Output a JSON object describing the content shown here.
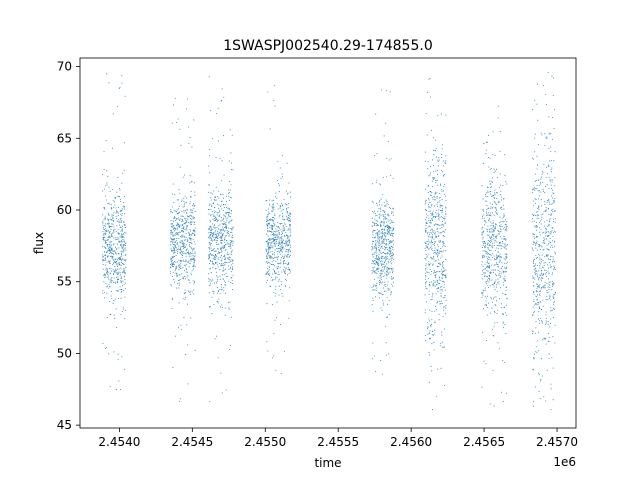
{
  "chart_data": {
    "type": "scatter",
    "title": "1SWASPJ002540.29-174855.0",
    "xlabel": "time",
    "ylabel": "flux",
    "x_offset_label": "1e6",
    "xlim": [
      2453730,
      2457130
    ],
    "ylim": [
      44.8,
      70.6
    ],
    "x_ticks": [
      2454000,
      2454500,
      2455000,
      2455500,
      2456000,
      2456500,
      2457000
    ],
    "x_tick_labels": [
      "2.4540",
      "2.4545",
      "2.4550",
      "2.4555",
      "2.4560",
      "2.4565",
      "2.4570"
    ],
    "y_ticks": [
      45,
      50,
      55,
      60,
      65,
      70
    ],
    "y_tick_labels": [
      "45",
      "50",
      "55",
      "60",
      "65",
      "70"
    ],
    "grid": false,
    "marker_color": "#1f77b4",
    "clusters": [
      {
        "x_start": 2453885,
        "x_end": 2454045,
        "center": 57.3,
        "core_spread": 1.9,
        "outlier_min": 47.2,
        "outlier_max": 69.6
      },
      {
        "x_start": 2454350,
        "x_end": 2454520,
        "center": 57.6,
        "core_spread": 1.8,
        "outlier_min": 46.0,
        "outlier_max": 68.6
      },
      {
        "x_start": 2454610,
        "x_end": 2454780,
        "center": 57.8,
        "core_spread": 2.1,
        "outlier_min": 46.0,
        "outlier_max": 69.3
      },
      {
        "x_start": 2455005,
        "x_end": 2455175,
        "center": 57.6,
        "core_spread": 1.7,
        "outlier_min": 48.2,
        "outlier_max": 68.9
      },
      {
        "x_start": 2455730,
        "x_end": 2455880,
        "center": 57.3,
        "core_spread": 1.8,
        "outlier_min": 46.7,
        "outlier_max": 68.8
      },
      {
        "x_start": 2456095,
        "x_end": 2456240,
        "center": 57.3,
        "core_spread": 3.3,
        "outlier_min": 46.0,
        "outlier_max": 69.8
      },
      {
        "x_start": 2456485,
        "x_end": 2456660,
        "center": 57.4,
        "core_spread": 2.6,
        "outlier_min": 46.0,
        "outlier_max": 68.3
      },
      {
        "x_start": 2456830,
        "x_end": 2456990,
        "center": 57.2,
        "core_spread": 3.6,
        "outlier_min": 46.0,
        "outlier_max": 69.6
      }
    ]
  }
}
